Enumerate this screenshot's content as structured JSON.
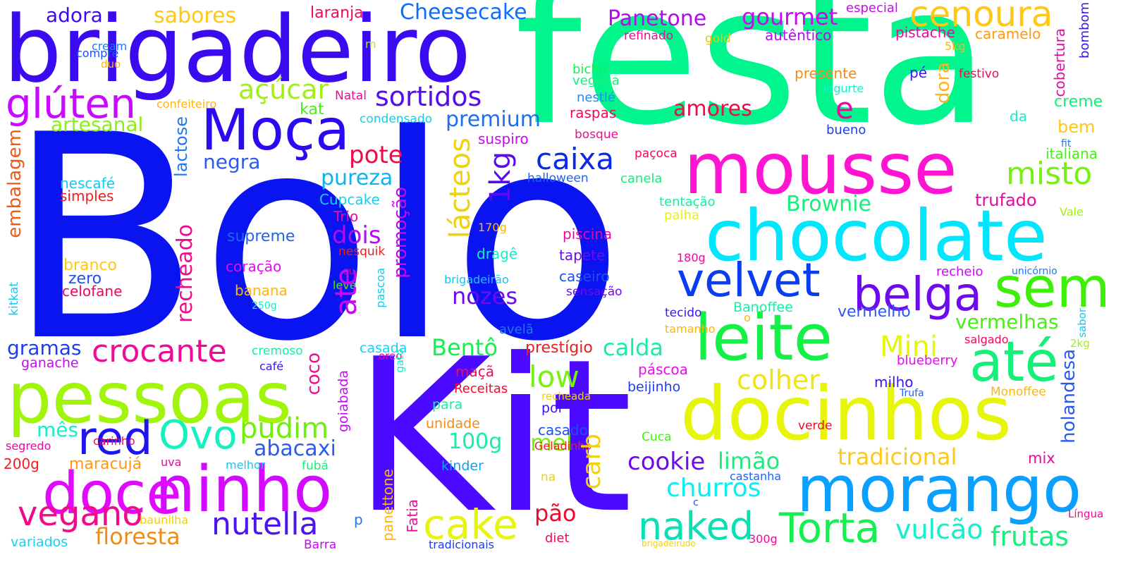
{
  "words": [
    {
      "text": "Bolo",
      "color": "#0a14f0"
    },
    {
      "text": "Kit",
      "color": "#4b0aff"
    },
    {
      "text": "festa",
      "color": "#00f58c"
    },
    {
      "text": "brigadeiro",
      "color": "#3a0af0"
    },
    {
      "text": "docinhos",
      "color": "#e6f50a"
    },
    {
      "text": "mousse",
      "color": "#ff14d2"
    },
    {
      "text": "chocolate",
      "color": "#00e6ff"
    },
    {
      "text": "pessoas",
      "color": "#a0f50a"
    },
    {
      "text": "morango",
      "color": "#0aa0ff"
    },
    {
      "text": "leite",
      "color": "#14f046"
    },
    {
      "text": "ninho",
      "color": "#d20aff"
    },
    {
      "text": "Moça",
      "color": "#2a0af0"
    },
    {
      "text": "até",
      "color": "#14f078"
    },
    {
      "text": "sem",
      "color": "#3cf00a"
    },
    {
      "text": "doce",
      "color": "#e10aff"
    },
    {
      "text": "velvet",
      "color": "#0a3cf0"
    },
    {
      "text": "belga",
      "color": "#6e0af0"
    },
    {
      "text": "Torta",
      "color": "#14f050"
    },
    {
      "text": "cenoura",
      "color": "#ffc814"
    },
    {
      "text": "glúten",
      "color": "#c80aff"
    },
    {
      "text": "red",
      "color": "#1e14f0"
    },
    {
      "text": "Ovo",
      "color": "#14f0be"
    },
    {
      "text": "crocante",
      "color": "#f00a96"
    },
    {
      "text": "cake",
      "color": "#e6f50a"
    },
    {
      "text": "naked",
      "color": "#0ae0b4"
    },
    {
      "text": "vegano",
      "color": "#f00a8c"
    },
    {
      "text": "nutella",
      "color": "#4b14f0"
    },
    {
      "text": "misto",
      "color": "#78f014"
    },
    {
      "text": "sortidos",
      "color": "#5a0af0"
    },
    {
      "text": "caixa",
      "color": "#0a2ae6"
    },
    {
      "text": "pudim",
      "color": "#6ef00a"
    },
    {
      "text": "açúcar",
      "color": "#a0f014"
    },
    {
      "text": "churros",
      "color": "#0af0f0"
    },
    {
      "text": "cookie",
      "color": "#6e0af0"
    },
    {
      "text": "Brownie",
      "color": "#14f078"
    },
    {
      "text": "Panetone",
      "color": "#b40af0"
    },
    {
      "text": "gourmet",
      "color": "#c80af0"
    },
    {
      "text": "Cheesecake",
      "color": "#0a6eff"
    },
    {
      "text": "sabores",
      "color": "#ffc814"
    },
    {
      "text": "adora",
      "color": "#3c0af0"
    },
    {
      "text": "laranja",
      "color": "#f00a5a"
    },
    {
      "text": "artesanal",
      "color": "#8cf014"
    },
    {
      "text": "premium",
      "color": "#1e6ef0"
    },
    {
      "text": "pote",
      "color": "#f00a46"
    },
    {
      "text": "pureza",
      "color": "#0ab4f0"
    },
    {
      "text": "negra",
      "color": "#2a5af0"
    },
    {
      "text": "dois",
      "color": "#b40af0"
    },
    {
      "text": "nozes",
      "color": "#6e0af0"
    },
    {
      "text": "low",
      "color": "#78f014"
    },
    {
      "text": "colher",
      "color": "#f0e60a"
    },
    {
      "text": "Mini",
      "color": "#e6f50a"
    },
    {
      "text": "vermelhas",
      "color": "#46f014"
    },
    {
      "text": "amores",
      "color": "#f00a46"
    },
    {
      "text": "e",
      "color": "#e60aa0"
    },
    {
      "text": "calda",
      "color": "#14f0a0"
    },
    {
      "text": "Bentô",
      "color": "#14f050"
    },
    {
      "text": "abacaxi",
      "color": "#2a5af0"
    },
    {
      "text": "100g",
      "color": "#14f0a0"
    },
    {
      "text": "mel",
      "color": "#78f00a"
    },
    {
      "text": "limão",
      "color": "#14f078"
    },
    {
      "text": "tradicional",
      "color": "#ffc814"
    },
    {
      "text": "vulcão",
      "color": "#14f0c8"
    },
    {
      "text": "frutas",
      "color": "#14f078"
    },
    {
      "text": "pão",
      "color": "#f00a2a"
    },
    {
      "text": "floresta",
      "color": "#f08c14"
    },
    {
      "text": "maracujá",
      "color": "#ff9614"
    },
    {
      "text": "mês",
      "color": "#14f0c8"
    },
    {
      "text": "gramas",
      "color": "#1e3cf0"
    },
    {
      "text": "prestígio",
      "color": "#f01e1e"
    },
    {
      "text": "vermelho",
      "color": "#2a5af0"
    },
    {
      "text": "trufado",
      "color": "#e60aa0"
    },
    {
      "text": "bem",
      "color": "#ffc814"
    },
    {
      "text": "creme",
      "color": "#14f078"
    },
    {
      "text": "italiana",
      "color": "#46f014"
    },
    {
      "text": "pistache",
      "color": "#e60aa0"
    },
    {
      "text": "caramelo",
      "color": "#ff9614"
    },
    {
      "text": "especial",
      "color": "#c80af0"
    },
    {
      "text": "autêntico",
      "color": "#b40af0"
    },
    {
      "text": "refinado",
      "color": "#f00a96"
    },
    {
      "text": "gold",
      "color": "#e6c80a"
    },
    {
      "text": "cream",
      "color": "#1e78f0"
    },
    {
      "text": "compre",
      "color": "#1e50f0"
    },
    {
      "text": "bicho",
      "color": "#14f050"
    },
    {
      "text": "vegana",
      "color": "#14f078"
    },
    {
      "text": "nestlé",
      "color": "#1e8cf0"
    },
    {
      "text": "raspas",
      "color": "#f00a5a"
    },
    {
      "text": "presente",
      "color": "#f08c14"
    },
    {
      "text": "iogurte",
      "color": "#14f0c8"
    },
    {
      "text": "festivo",
      "color": "#f00a5a"
    },
    {
      "text": "pé",
      "color": "#3c14f0"
    },
    {
      "text": "da",
      "color": "#14f0c8"
    },
    {
      "text": "bueno",
      "color": "#1e3cf0"
    },
    {
      "text": "fit",
      "color": "#1e78f0"
    },
    {
      "text": "5kg",
      "color": "#ffb414"
    },
    {
      "text": "Natal",
      "color": "#f00a96"
    },
    {
      "text": "condensado",
      "color": "#0ad2f0"
    },
    {
      "text": "confeiteiro",
      "color": "#ffb414"
    },
    {
      "text": "kat",
      "color": "#46f014"
    },
    {
      "text": "suspiro",
      "color": "#c80af0"
    },
    {
      "text": "bosque",
      "color": "#f00a96"
    },
    {
      "text": "paçoca",
      "color": "#f00a5a"
    },
    {
      "text": "halloween",
      "color": "#1e64f0"
    },
    {
      "text": "canela",
      "color": "#14f078"
    },
    {
      "text": "tentação",
      "color": "#14f0a0"
    },
    {
      "text": "palha",
      "color": "#e6f50a"
    },
    {
      "text": "Vale",
      "color": "#a0f014"
    },
    {
      "text": "nescafé",
      "color": "#14c8f0"
    },
    {
      "text": "simples",
      "color": "#f01e1e"
    },
    {
      "text": "Cupcake",
      "color": "#14d2f0"
    },
    {
      "text": "Trio",
      "color": "#f00a96"
    },
    {
      "text": "170g",
      "color": "#ffb414"
    },
    {
      "text": "supreme",
      "color": "#1e64f0"
    },
    {
      "text": "piscina",
      "color": "#e60aa0"
    },
    {
      "text": "tapete",
      "color": "#6e0af0"
    },
    {
      "text": "caseiro",
      "color": "#1e50f0"
    },
    {
      "text": "sensação",
      "color": "#6e0af0"
    },
    {
      "text": "dragê",
      "color": "#14f0c8"
    },
    {
      "text": "180g",
      "color": "#e60aa0"
    },
    {
      "text": "recheio",
      "color": "#c80af0"
    },
    {
      "text": "unicórnio",
      "color": "#1e78f0"
    },
    {
      "text": "coração",
      "color": "#e60af0"
    },
    {
      "text": "branco",
      "color": "#ffc814"
    },
    {
      "text": "zero",
      "color": "#1e50f0"
    },
    {
      "text": "celofane",
      "color": "#f00a5a"
    },
    {
      "text": "banana",
      "color": "#ffb414"
    },
    {
      "text": "250g",
      "color": "#14f0c8"
    },
    {
      "text": "nesquik",
      "color": "#f01e1e"
    },
    {
      "text": "leve",
      "color": "#46f014"
    },
    {
      "text": "ou",
      "color": "#c80a8c"
    },
    {
      "text": "pascoa",
      "color": "#14c8f0"
    },
    {
      "text": "brigadeirão",
      "color": "#14c8f0"
    },
    {
      "text": "tecido",
      "color": "#3c14f0"
    },
    {
      "text": "Banoffee",
      "color": "#14f0a0"
    },
    {
      "text": "o",
      "color": "#ffb414"
    },
    {
      "text": "tamanho",
      "color": "#ffb414"
    },
    {
      "text": "avelã",
      "color": "#1e78f0"
    },
    {
      "text": "salgado",
      "color": "#f00a5a"
    },
    {
      "text": "2kg",
      "color": "#a0f014"
    },
    {
      "text": "blueberry",
      "color": "#e60af0"
    },
    {
      "text": "casada",
      "color": "#14d2f0"
    },
    {
      "text": "cremoso",
      "color": "#14f0a0"
    },
    {
      "text": "café",
      "color": "#3c14f0"
    },
    {
      "text": "ganache",
      "color": "#c80af0"
    },
    {
      "text": "oreo",
      "color": "#e60aa0"
    },
    {
      "text": "maçã",
      "color": "#f00a5a"
    },
    {
      "text": "Receitas",
      "color": "#f00a2a"
    },
    {
      "text": "recheada",
      "color": "#f0d20a"
    },
    {
      "text": "beijinho",
      "color": "#1e3cf0"
    },
    {
      "text": "páscoa",
      "color": "#e60af0"
    },
    {
      "text": "milho",
      "color": "#3c14f0"
    },
    {
      "text": "Trufa",
      "color": "#1e64f0"
    },
    {
      "text": "Monoffee",
      "color": "#ffb414"
    },
    {
      "text": "para",
      "color": "#14f0a0"
    },
    {
      "text": "por",
      "color": "#3c14f0"
    },
    {
      "text": "unidade",
      "color": "#f08c14"
    },
    {
      "text": "casado",
      "color": "#1e50f0"
    },
    {
      "text": "Geladinho",
      "color": "#f01e1e"
    },
    {
      "text": "verde",
      "color": "#f00a2a"
    },
    {
      "text": "Cuca",
      "color": "#46f014"
    },
    {
      "text": "kinder",
      "color": "#14a0f0"
    },
    {
      "text": "na",
      "color": "#f0d20a"
    },
    {
      "text": "castanha",
      "color": "#1e64f0"
    },
    {
      "text": "mix",
      "color": "#e60aa0"
    },
    {
      "text": "c",
      "color": "#1e50f0"
    },
    {
      "text": "carinho",
      "color": "#f00a5a"
    },
    {
      "text": "segredo",
      "color": "#e60aa0"
    },
    {
      "text": "200g",
      "color": "#f01e1e"
    },
    {
      "text": "uva",
      "color": "#e60aa0"
    },
    {
      "text": "melhor",
      "color": "#14c8f0"
    },
    {
      "text": "fubá",
      "color": "#14f078"
    },
    {
      "text": "baunilha",
      "color": "#f0d20a"
    },
    {
      "text": "p",
      "color": "#1e78f0"
    },
    {
      "text": "variados",
      "color": "#14d2f0"
    },
    {
      "text": "Barra",
      "color": "#c80af0"
    },
    {
      "text": "diet",
      "color": "#f00a5a"
    },
    {
      "text": "tradicionais",
      "color": "#1e3cf0"
    },
    {
      "text": "300g",
      "color": "#f00a96"
    },
    {
      "text": "brigadeirudo",
      "color": "#f0d20a"
    },
    {
      "text": "Língua",
      "color": "#f00a96"
    },
    {
      "text": "m",
      "color": "#a0f014"
    },
    {
      "text": "duo",
      "color": "#ffb414"
    },
    {
      "text": "embalagem",
      "color": "#f05a14"
    },
    {
      "text": "kitkat",
      "color": "#14c8f0"
    },
    {
      "text": "lácteos",
      "color": "#f0d20a"
    },
    {
      "text": "1kg",
      "color": "#5a0af0"
    },
    {
      "text": "ate",
      "color": "#c80af0"
    },
    {
      "text": "recheado",
      "color": "#f00a8c"
    },
    {
      "text": "lactose",
      "color": "#1e78f0"
    },
    {
      "text": "promoção",
      "color": "#c80af0"
    },
    {
      "text": "coco",
      "color": "#f00a8c"
    },
    {
      "text": "goiabada",
      "color": "#c80af0"
    },
    {
      "text": "dora",
      "color": "#ffb414"
    },
    {
      "text": "cobertura",
      "color": "#e60aa0"
    },
    {
      "text": "bombom",
      "color": "#3c14f0"
    },
    {
      "text": "carb",
      "color": "#f0d20a"
    },
    {
      "text": "holandesa",
      "color": "#2a5af0"
    },
    {
      "text": "panettone",
      "color": "#ffb414"
    },
    {
      "text": "Fatia",
      "color": "#f00a96"
    },
    {
      "text": "gato",
      "color": "#14f0c8"
    },
    {
      "text": "sabor",
      "color": "#14c8f0"
    }
  ]
}
